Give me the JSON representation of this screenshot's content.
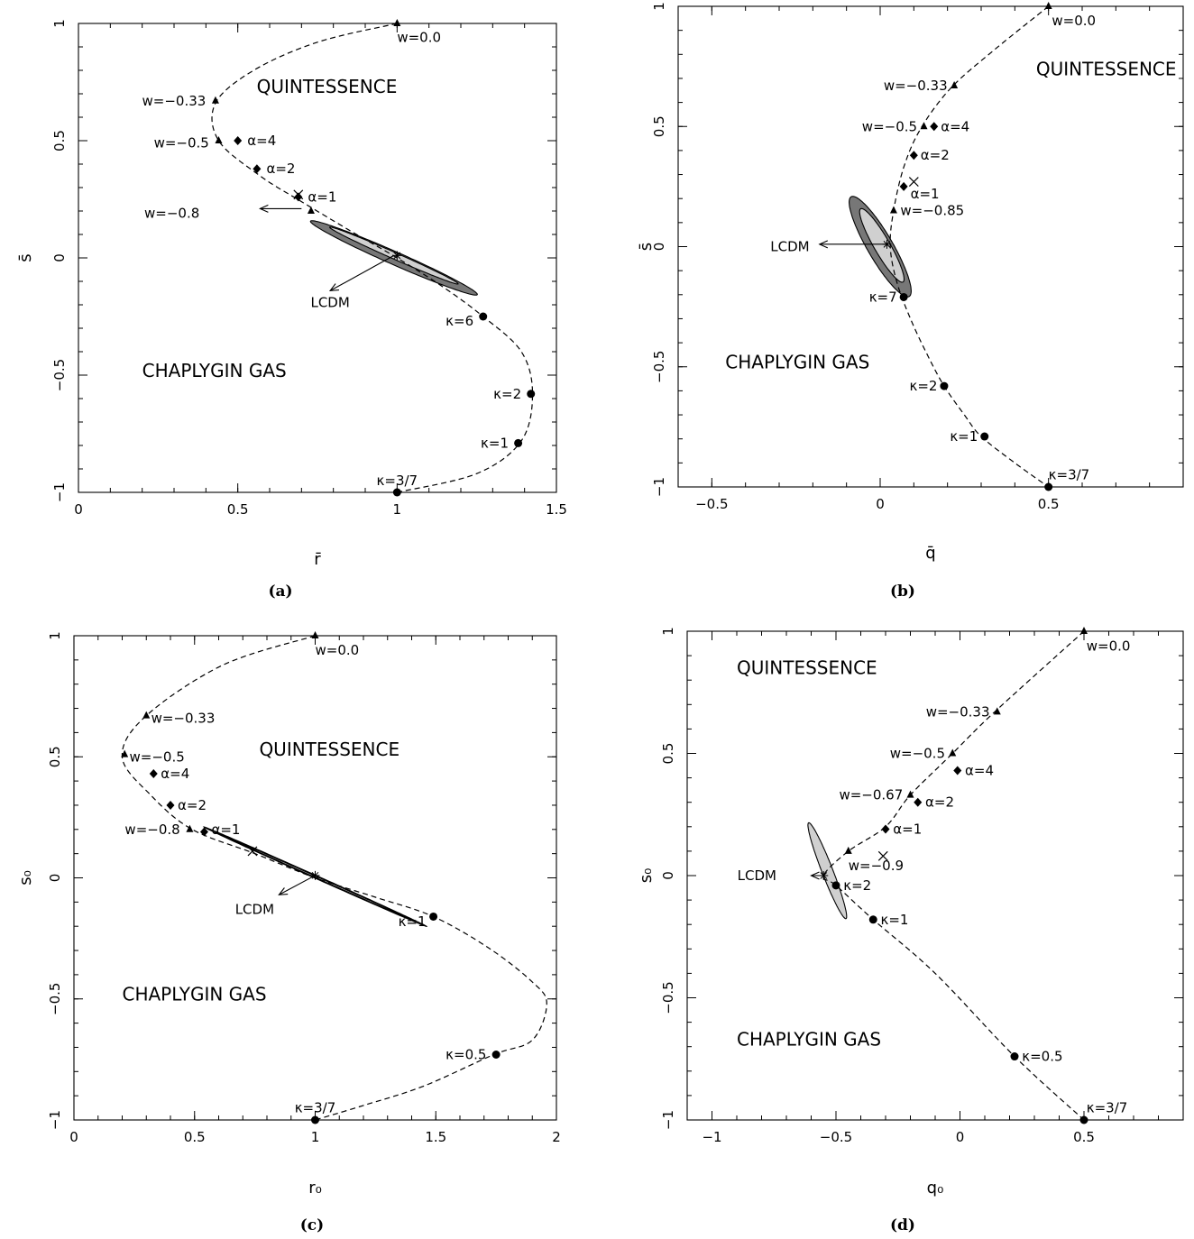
{
  "chart_data": [
    {
      "type": "scatter",
      "caption": "(a)",
      "xlabel": "r̄",
      "ylabel": "s̄",
      "xlim": [
        0,
        1.5
      ],
      "ylim": [
        -1,
        1
      ],
      "xticks": [
        0,
        0.5,
        1,
        1.5
      ],
      "xtick_labels": [
        "0",
        "0.5",
        "1",
        "1.5"
      ],
      "yticks": [
        -1,
        -0.5,
        0,
        0.5,
        1
      ],
      "ytick_labels": [
        "−1",
        "−0.5",
        "0",
        "0.5",
        "1"
      ],
      "regions": [
        {
          "label": "QUINTESSENCE",
          "x": 1.0,
          "y": 0.73
        },
        {
          "label": "CHAPLYGIN GAS",
          "x": 0.2,
          "y": -0.48
        }
      ],
      "curve": [
        [
          1.0,
          1.0
        ],
        [
          0.75,
          0.92
        ],
        [
          0.55,
          0.8
        ],
        [
          0.43,
          0.66
        ],
        [
          0.44,
          0.5
        ],
        [
          0.57,
          0.35
        ],
        [
          0.7,
          0.24
        ],
        [
          0.86,
          0.11
        ],
        [
          1.0,
          0.0
        ],
        [
          1.14,
          -0.12
        ],
        [
          1.27,
          -0.25
        ],
        [
          1.39,
          -0.4
        ],
        [
          1.425,
          -0.58
        ],
        [
          1.39,
          -0.78
        ],
        [
          1.25,
          -0.92
        ],
        [
          1.0,
          -1.0
        ]
      ],
      "ellipses": [
        {
          "cx": 0.99,
          "cy": 0.0,
          "a": 0.305,
          "b": 0.026,
          "angle_deg": -31,
          "fill": "#777777"
        },
        {
          "cx": 0.99,
          "cy": 0.01,
          "a": 0.235,
          "b": 0.013,
          "angle_deg": -31,
          "fill": "#d0d0d0"
        }
      ],
      "points": [
        {
          "label": "w=0.0",
          "x": 1.0,
          "y": 1.0,
          "marker": "triangle",
          "lx": 0.0,
          "ly": -0.06,
          "anchor": "start"
        },
        {
          "label": "w=−0.33",
          "x": 0.43,
          "y": 0.67,
          "marker": "triangle",
          "lx": -0.03,
          "ly": 0.0,
          "anchor": "end"
        },
        {
          "label": "w=−0.5",
          "x": 0.44,
          "y": 0.5,
          "marker": "triangle",
          "lx": -0.03,
          "ly": -0.01,
          "anchor": "end"
        },
        {
          "label": "α=4",
          "x": 0.5,
          "y": 0.5,
          "marker": "diamond",
          "lx": 0.03,
          "ly": 0.0,
          "anchor": "start"
        },
        {
          "label": "α=2",
          "x": 0.56,
          "y": 0.38,
          "marker": "diamond",
          "lx": 0.03,
          "ly": 0.0,
          "anchor": "start"
        },
        {
          "label": "α=1",
          "x": 0.69,
          "y": 0.26,
          "marker": "diamond",
          "lx": 0.03,
          "ly": 0.0,
          "anchor": "start"
        },
        {
          "label": "",
          "x": 0.69,
          "y": 0.27,
          "marker": "cross"
        },
        {
          "label": "",
          "x": 0.73,
          "y": 0.2,
          "marker": "triangle"
        },
        {
          "label": "",
          "x": 1.0,
          "y": 0.01,
          "marker": "star"
        },
        {
          "label": "κ=6",
          "x": 1.27,
          "y": -0.25,
          "marker": "circle",
          "lx": -0.03,
          "ly": -0.02,
          "anchor": "end"
        },
        {
          "label": "κ=2",
          "x": 1.42,
          "y": -0.58,
          "marker": "circle",
          "lx": -0.03,
          "ly": 0.0,
          "anchor": "end"
        },
        {
          "label": "κ=1",
          "x": 1.38,
          "y": -0.79,
          "marker": "circle",
          "lx": -0.03,
          "ly": 0.0,
          "anchor": "end"
        },
        {
          "label": "κ=3/7",
          "x": 1.0,
          "y": -1.0,
          "marker": "circle",
          "lx": 0.0,
          "ly": 0.05,
          "anchor": "middle"
        }
      ],
      "annotations": [
        {
          "label": "w=−0.8",
          "tx": 0.38,
          "ty": 0.19,
          "ax": 0.7,
          "ay": 0.21,
          "bx": 0.57,
          "by": 0.21
        },
        {
          "label": "LCDM",
          "tx": 0.79,
          "ty": -0.19,
          "ax": 0.99,
          "ay": 0.01,
          "bx": 0.79,
          "by": -0.14
        }
      ]
    },
    {
      "type": "scatter",
      "caption": "(b)",
      "xlabel": "q̄",
      "ylabel": "s̄",
      "xlim": [
        -0.6,
        0.9
      ],
      "ylim": [
        -1,
        1
      ],
      "xticks": [
        -0.5,
        0,
        0.5
      ],
      "xtick_labels": [
        "−0.5",
        "0",
        "0.5"
      ],
      "yticks": [
        -1,
        -0.5,
        0,
        0.5,
        1
      ],
      "ytick_labels": [
        "−1",
        "−0.5",
        "0",
        "0.5",
        "1"
      ],
      "regions": [
        {
          "label": "QUINTESSENCE",
          "x": 0.88,
          "y": 0.74
        },
        {
          "label": "CHAPLYGIN GAS",
          "x": -0.46,
          "y": -0.48
        }
      ],
      "curve": [
        [
          0.5,
          1.0
        ],
        [
          0.34,
          0.82
        ],
        [
          0.21,
          0.66
        ],
        [
          0.12,
          0.49
        ],
        [
          0.07,
          0.33
        ],
        [
          0.04,
          0.15
        ],
        [
          0.03,
          0.0
        ],
        [
          0.05,
          -0.15
        ],
        [
          0.09,
          -0.3
        ],
        [
          0.14,
          -0.45
        ],
        [
          0.19,
          -0.58
        ],
        [
          0.25,
          -0.7
        ],
        [
          0.3,
          -0.79
        ],
        [
          0.4,
          -0.9
        ],
        [
          0.5,
          -1.0
        ]
      ],
      "ellipses": [
        {
          "cx": 0.0,
          "cy": 0.0,
          "a": 0.225,
          "b": 0.04,
          "angle_deg": -68,
          "fill": "#777777"
        },
        {
          "cx": 0.005,
          "cy": 0.005,
          "a": 0.165,
          "b": 0.025,
          "angle_deg": -68,
          "fill": "#d0d0d0"
        }
      ],
      "points": [
        {
          "label": "w=0.0",
          "x": 0.5,
          "y": 1.0,
          "marker": "triangle",
          "lx": 0.01,
          "ly": -0.06,
          "anchor": "start"
        },
        {
          "label": "w=−0.33",
          "x": 0.22,
          "y": 0.67,
          "marker": "triangle",
          "lx": -0.02,
          "ly": 0.0,
          "anchor": "end"
        },
        {
          "label": "w=−0.5",
          "x": 0.13,
          "y": 0.5,
          "marker": "triangle",
          "lx": -0.02,
          "ly": 0.0,
          "anchor": "end"
        },
        {
          "label": "α=4",
          "x": 0.16,
          "y": 0.5,
          "marker": "diamond",
          "lx": 0.02,
          "ly": 0.0,
          "anchor": "start"
        },
        {
          "label": "α=2",
          "x": 0.1,
          "y": 0.38,
          "marker": "diamond",
          "lx": 0.02,
          "ly": 0.0,
          "anchor": "start"
        },
        {
          "label": "α=1",
          "x": 0.07,
          "y": 0.25,
          "marker": "diamond",
          "lx": 0.02,
          "ly": -0.03,
          "anchor": "start"
        },
        {
          "label": "",
          "x": 0.1,
          "y": 0.27,
          "marker": "cross"
        },
        {
          "label": "w=−0.85",
          "x": 0.04,
          "y": 0.15,
          "marker": "triangle",
          "lx": 0.02,
          "ly": 0.0,
          "anchor": "start"
        },
        {
          "label": "",
          "x": 0.02,
          "y": 0.01,
          "marker": "star"
        },
        {
          "label": "κ=7",
          "x": 0.07,
          "y": -0.21,
          "marker": "circle",
          "lx": -0.02,
          "ly": 0.0,
          "anchor": "end"
        },
        {
          "label": "κ=2",
          "x": 0.19,
          "y": -0.58,
          "marker": "circle",
          "lx": -0.02,
          "ly": 0.0,
          "anchor": "end"
        },
        {
          "label": "κ=1",
          "x": 0.31,
          "y": -0.79,
          "marker": "circle",
          "lx": -0.02,
          "ly": 0.0,
          "anchor": "end"
        },
        {
          "label": "κ=3/7",
          "x": 0.5,
          "y": -1.0,
          "marker": "circle",
          "lx": 0.0,
          "ly": 0.05,
          "anchor": "start"
        }
      ],
      "annotations": [
        {
          "label": "LCDM",
          "tx": -0.21,
          "ty": 0.0,
          "ax": 0.02,
          "ay": 0.01,
          "bx": -0.18,
          "by": 0.01
        }
      ]
    },
    {
      "type": "scatter",
      "caption": "(c)",
      "xlabel": "r₀",
      "ylabel": "s₀",
      "xlim": [
        0,
        2
      ],
      "ylim": [
        -1,
        1
      ],
      "xticks": [
        0,
        0.5,
        1,
        1.5,
        2
      ],
      "xtick_labels": [
        "0",
        "0.5",
        "1",
        "1.5",
        "2"
      ],
      "yticks": [
        -1,
        -0.5,
        0,
        0.5,
        1
      ],
      "ytick_labels": [
        "−1",
        "−0.5",
        "0",
        "0.5",
        "1"
      ],
      "regions": [
        {
          "label": "QUINTESSENCE",
          "x": 1.35,
          "y": 0.53
        },
        {
          "label": "CHAPLYGIN GAS",
          "x": 0.2,
          "y": -0.48
        }
      ],
      "curve": [
        [
          1.0,
          1.0
        ],
        [
          0.62,
          0.88
        ],
        [
          0.3,
          0.67
        ],
        [
          0.2,
          0.5
        ],
        [
          0.32,
          0.34
        ],
        [
          0.49,
          0.2
        ],
        [
          0.75,
          0.1
        ],
        [
          1.0,
          0.0
        ],
        [
          1.25,
          -0.08
        ],
        [
          1.49,
          -0.16
        ],
        [
          1.72,
          -0.29
        ],
        [
          1.9,
          -0.43
        ],
        [
          1.96,
          -0.52
        ],
        [
          1.9,
          -0.67
        ],
        [
          1.74,
          -0.73
        ],
        [
          1.45,
          -0.86
        ],
        [
          1.2,
          -0.94
        ],
        [
          1.0,
          -1.0
        ]
      ],
      "ellipses": [
        {
          "cx": 1.0,
          "cy": 0.005,
          "a": 0.505,
          "b": 0.006,
          "angle_deg": -24,
          "fill": "#777777"
        },
        {
          "cx": 1.0,
          "cy": 0.005,
          "a": 0.45,
          "b": 0.003,
          "angle_deg": -24,
          "fill": "#d0d0d0"
        }
      ],
      "points": [
        {
          "label": "w=0.0",
          "x": 1.0,
          "y": 1.0,
          "marker": "triangle",
          "lx": 0.0,
          "ly": -0.06,
          "anchor": "start"
        },
        {
          "label": "w=−0.33",
          "x": 0.3,
          "y": 0.67,
          "marker": "triangle",
          "lx": 0.02,
          "ly": -0.01,
          "anchor": "start"
        },
        {
          "label": "w=−0.5",
          "x": 0.21,
          "y": 0.51,
          "marker": "triangle",
          "lx": 0.02,
          "ly": -0.01,
          "anchor": "start"
        },
        {
          "label": "α=4",
          "x": 0.33,
          "y": 0.43,
          "marker": "diamond",
          "lx": 0.03,
          "ly": 0.0,
          "anchor": "start"
        },
        {
          "label": "α=2",
          "x": 0.4,
          "y": 0.3,
          "marker": "diamond",
          "lx": 0.03,
          "ly": 0.0,
          "anchor": "start"
        },
        {
          "label": "α=1",
          "x": 0.54,
          "y": 0.19,
          "marker": "diamond",
          "lx": 0.03,
          "ly": 0.01,
          "anchor": "start"
        },
        {
          "label": "w=−0.8",
          "x": 0.48,
          "y": 0.2,
          "marker": "triangle",
          "lx": -0.04,
          "ly": 0.0,
          "anchor": "end"
        },
        {
          "label": "",
          "x": 0.74,
          "y": 0.11,
          "marker": "cross"
        },
        {
          "label": "",
          "x": 1.0,
          "y": 0.01,
          "marker": "star"
        },
        {
          "label": "κ=1",
          "x": 1.49,
          "y": -0.16,
          "marker": "circle",
          "lx": -0.03,
          "ly": -0.02,
          "anchor": "end"
        },
        {
          "label": "κ=0.5",
          "x": 1.75,
          "y": -0.73,
          "marker": "circle",
          "lx": -0.04,
          "ly": 0.0,
          "anchor": "end"
        },
        {
          "label": "κ=3/7",
          "x": 1.0,
          "y": -1.0,
          "marker": "circle",
          "lx": 0.0,
          "ly": 0.05,
          "anchor": "middle"
        }
      ],
      "annotations": [
        {
          "label": "LCDM",
          "tx": 0.83,
          "ty": -0.13,
          "ax": 1.0,
          "ay": 0.01,
          "bx": 0.85,
          "by": -0.07
        }
      ]
    },
    {
      "type": "scatter",
      "caption": "(d)",
      "xlabel": "q₀",
      "ylabel": "s₀",
      "xlim": [
        -1.1,
        0.9
      ],
      "ylim": [
        -1,
        1
      ],
      "xticks": [
        -1,
        -0.5,
        0,
        0.5
      ],
      "xtick_labels": [
        "−1",
        "−0.5",
        "0",
        "0.5"
      ],
      "yticks": [
        -1,
        -0.5,
        0,
        0.5,
        1
      ],
      "ytick_labels": [
        "−1",
        "−0.5",
        "0",
        "0.5",
        "1"
      ],
      "regions": [
        {
          "label": "QUINTESSENCE",
          "x": -0.9,
          "y": 0.85
        },
        {
          "label": "CHAPLYGIN GAS",
          "x": -0.9,
          "y": -0.67
        }
      ],
      "curve": [
        [
          0.5,
          1.0
        ],
        [
          0.14,
          0.67
        ],
        [
          -0.03,
          0.5
        ],
        [
          -0.2,
          0.33
        ],
        [
          -0.3,
          0.2
        ],
        [
          -0.45,
          0.1
        ],
        [
          -0.55,
          0.0
        ],
        [
          -0.5,
          -0.04
        ],
        [
          -0.35,
          -0.18
        ],
        [
          -0.1,
          -0.4
        ],
        [
          0.22,
          -0.74
        ],
        [
          0.5,
          -1.0
        ]
      ],
      "ellipses": [
        {
          "cx": -0.535,
          "cy": 0.02,
          "a": 0.21,
          "b": 0.022,
          "angle_deg": -69,
          "fill": "#d0d0d0"
        }
      ],
      "points": [
        {
          "label": "w=0.0",
          "x": 0.5,
          "y": 1.0,
          "marker": "triangle",
          "lx": 0.01,
          "ly": -0.06,
          "anchor": "start"
        },
        {
          "label": "w=−0.33",
          "x": 0.15,
          "y": 0.67,
          "marker": "triangle",
          "lx": -0.03,
          "ly": 0.0,
          "anchor": "end"
        },
        {
          "label": "w=−0.5",
          "x": -0.03,
          "y": 0.5,
          "marker": "triangle",
          "lx": -0.03,
          "ly": 0.0,
          "anchor": "end"
        },
        {
          "label": "α=4",
          "x": -0.01,
          "y": 0.43,
          "marker": "diamond",
          "lx": 0.03,
          "ly": 0.0,
          "anchor": "start"
        },
        {
          "label": "w=−0.67",
          "x": -0.2,
          "y": 0.33,
          "marker": "triangle",
          "lx": -0.03,
          "ly": 0.0,
          "anchor": "end"
        },
        {
          "label": "α=2",
          "x": -0.17,
          "y": 0.3,
          "marker": "diamond",
          "lx": 0.03,
          "ly": 0.0,
          "anchor": "start"
        },
        {
          "label": "α=1",
          "x": -0.3,
          "y": 0.19,
          "marker": "diamond",
          "lx": 0.03,
          "ly": 0.0,
          "anchor": "start"
        },
        {
          "label": "",
          "x": -0.31,
          "y": 0.08,
          "marker": "cross"
        },
        {
          "label": "w=−0.9",
          "x": -0.45,
          "y": 0.1,
          "marker": "triangle",
          "lx": 0.0,
          "ly": -0.06,
          "anchor": "start"
        },
        {
          "label": "",
          "x": -0.55,
          "y": 0.0,
          "marker": "star"
        },
        {
          "label": "κ=2",
          "x": -0.5,
          "y": -0.04,
          "marker": "circle",
          "lx": 0.03,
          "ly": 0.0,
          "anchor": "start"
        },
        {
          "label": "κ=1",
          "x": -0.35,
          "y": -0.18,
          "marker": "circle",
          "lx": 0.03,
          "ly": 0.0,
          "anchor": "start"
        },
        {
          "label": "κ=0.5",
          "x": 0.22,
          "y": -0.74,
          "marker": "circle",
          "lx": 0.03,
          "ly": 0.0,
          "anchor": "start"
        },
        {
          "label": "κ=3/7",
          "x": 0.5,
          "y": -1.0,
          "marker": "circle",
          "lx": 0.01,
          "ly": 0.05,
          "anchor": "start"
        }
      ],
      "annotations": [
        {
          "label": "LCDM",
          "tx": -0.74,
          "ty": 0.0,
          "ax": -0.55,
          "ay": 0.0,
          "bx": -0.6,
          "by": 0.0
        }
      ]
    }
  ]
}
